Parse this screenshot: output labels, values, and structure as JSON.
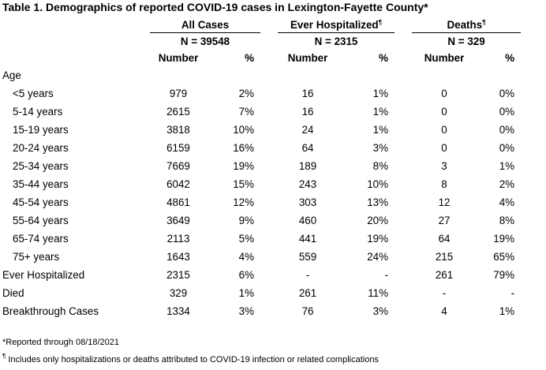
{
  "title": "Table 1. Demographics of reported COVID-19 cases in Lexington-Fayette County*",
  "groups": [
    {
      "label": "All Cases",
      "mark": "",
      "n": "N = 39548"
    },
    {
      "label": "Ever Hospitalized",
      "mark": "¶",
      "n": "N = 2315"
    },
    {
      "label": "Deaths",
      "mark": "¶",
      "n": "N = 329"
    }
  ],
  "col_headers": {
    "number": "Number",
    "pct": "%"
  },
  "section_age": "Age",
  "rows": [
    {
      "label": "<5 years",
      "v": [
        "979",
        "2%",
        "16",
        "1%",
        "0",
        "0%"
      ]
    },
    {
      "label": "5-14 years",
      "v": [
        "2615",
        "7%",
        "16",
        "1%",
        "0",
        "0%"
      ]
    },
    {
      "label": "15-19 years",
      "v": [
        "3818",
        "10%",
        "24",
        "1%",
        "0",
        "0%"
      ]
    },
    {
      "label": "20-24 years",
      "v": [
        "6159",
        "16%",
        "64",
        "3%",
        "0",
        "0%"
      ]
    },
    {
      "label": "25-34 years",
      "v": [
        "7669",
        "19%",
        "189",
        "8%",
        "3",
        "1%"
      ]
    },
    {
      "label": "35-44 years",
      "v": [
        "6042",
        "15%",
        "243",
        "10%",
        "8",
        "2%"
      ]
    },
    {
      "label": "45-54 years",
      "v": [
        "4861",
        "12%",
        "303",
        "13%",
        "12",
        "4%"
      ]
    },
    {
      "label": "55-64 years",
      "v": [
        "3649",
        "9%",
        "460",
        "20%",
        "27",
        "8%"
      ]
    },
    {
      "label": "65-74 years",
      "v": [
        "2113",
        "5%",
        "441",
        "19%",
        "64",
        "19%"
      ]
    },
    {
      "label": "75+ years",
      "v": [
        "1643",
        "4%",
        "559",
        "24%",
        "215",
        "65%"
      ]
    }
  ],
  "summary_rows": [
    {
      "label": "Ever Hospitalized",
      "v": [
        "2315",
        "6%",
        "-",
        "-",
        "261",
        "79%"
      ]
    },
    {
      "label": "Died",
      "v": [
        "329",
        "1%",
        "261",
        "11%",
        "-",
        "-"
      ]
    },
    {
      "label": "Breakthrough Cases",
      "v": [
        "1334",
        "3%",
        "76",
        "3%",
        "4",
        "1%"
      ]
    }
  ],
  "footnotes": {
    "reported": "*Reported through 08/18/2021",
    "mark": "¶",
    "includes": " Includes only hospitalizations or deaths attributed to COVID-19 infection or related complications"
  }
}
